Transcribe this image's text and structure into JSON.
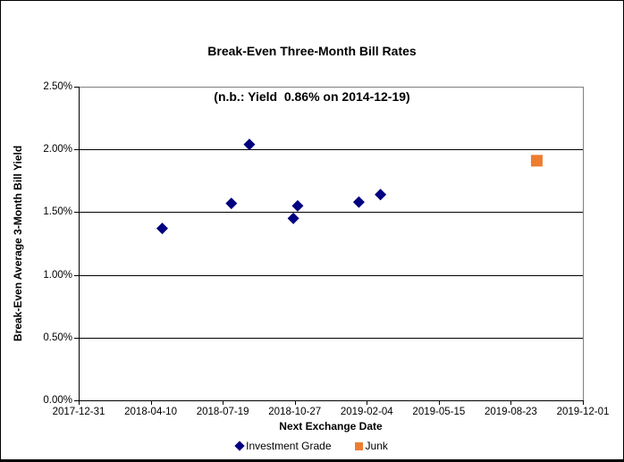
{
  "chart_data": {
    "type": "scatter",
    "title": "Break-Even Three-Month Bill Rates",
    "subtitle": "(n.b.: Yield  0.86% on 2014-12-19)",
    "xlabel": "Next Exchange Date",
    "ylabel": "Break-Even Average 3-Month Bill Yield",
    "grid": true,
    "legend_position": "bottom",
    "x_axis": {
      "min": "2017-12-31",
      "max": "2019-12-01",
      "tick_interval_days": 100,
      "tick_labels": [
        "2017-12-31",
        "2018-04-10",
        "2018-07-19",
        "2018-10-27",
        "2019-02-04",
        "2019-05-15",
        "2019-08-23",
        "2019-12-01"
      ]
    },
    "y_axis": {
      "min": 0,
      "max": 2.5,
      "step": 0.5,
      "unit": "%",
      "tick_labels": [
        "0.00%",
        "0.50%",
        "1.00%",
        "1.50%",
        "2.00%",
        "2.50%"
      ]
    },
    "series": [
      {
        "name": "Investment Grade",
        "marker": "diamond",
        "color": "#000080",
        "points": [
          {
            "x": "2018-04-26",
            "y": 1.37
          },
          {
            "x": "2018-07-31",
            "y": 1.57
          },
          {
            "x": "2018-08-25",
            "y": 2.04
          },
          {
            "x": "2018-10-25",
            "y": 1.45
          },
          {
            "x": "2018-10-31",
            "y": 1.55
          },
          {
            "x": "2019-01-24",
            "y": 1.58
          },
          {
            "x": "2019-02-23",
            "y": 1.64
          }
        ]
      },
      {
        "name": "Junk",
        "marker": "square",
        "color": "#ED7D31",
        "points": [
          {
            "x": "2019-09-28",
            "y": 1.91
          }
        ]
      }
    ],
    "colors": {
      "gridline": "#000000",
      "axis": "#000000",
      "plot_border": "#808080",
      "text": "#000000"
    }
  }
}
